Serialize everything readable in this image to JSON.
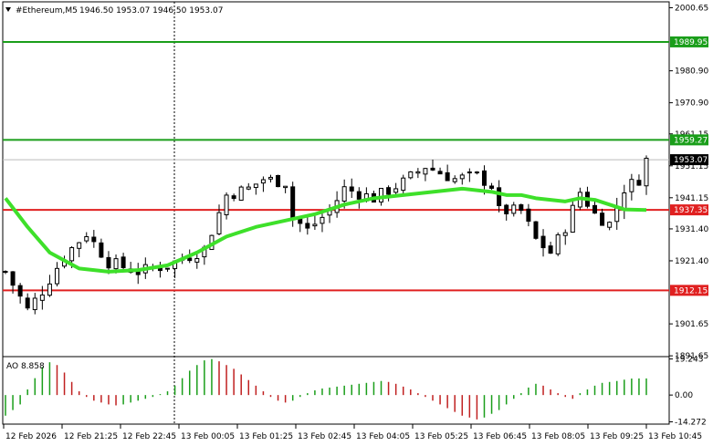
{
  "header": {
    "symbol": "#Ethereum,M5",
    "ohlc": "1946.50 1953.07 1946.50 1953.07"
  },
  "price_axis": {
    "ticks": [
      "2000.65",
      "1980.90",
      "1970.90",
      "1961.15",
      "1951.15",
      "1941.15",
      "1931.40",
      "1921.40",
      "1901.65",
      "1891.65"
    ],
    "tick_values": [
      2000.65,
      1980.9,
      1970.9,
      1961.15,
      1951.15,
      1941.15,
      1931.4,
      1921.4,
      1901.65,
      1891.65
    ],
    "range": [
      1891.4,
      2002.5
    ]
  },
  "levels": [
    {
      "label": "1989.95",
      "value": 1989.95,
      "color": "#1a9e1a"
    },
    {
      "label": "1959.27",
      "value": 1959.27,
      "color": "#1a9e1a"
    },
    {
      "label": "1937.35",
      "value": 1937.35,
      "color": "#e02020"
    },
    {
      "label": "1912.15",
      "value": 1912.15,
      "color": "#e02020"
    }
  ],
  "current_price": {
    "label": "1953.07",
    "value": 1953.07
  },
  "ao": {
    "label": "AO 8.858",
    "ticks": [
      "19.243",
      "0.00",
      "-14.272"
    ],
    "tick_values": [
      19.243,
      0,
      -14.272
    ],
    "range": [
      -15.5,
      20.5
    ],
    "up_color": "#1a9e1a",
    "down_color": "#c02020"
  },
  "time_axis": {
    "labels": [
      "12 Feb 2026",
      "12 Feb 21:25",
      "12 Feb 22:45",
      "13 Feb 00:05",
      "13 Feb 01:25",
      "13 Feb 02:45",
      "13 Feb 04:05",
      "13 Feb 05:25",
      "13 Feb 06:45",
      "13 Feb 08:05",
      "13 Feb 09:25",
      "13 Feb 10:45"
    ]
  },
  "chart_data": {
    "type": "candlestick",
    "timeframe": "M5",
    "bar_count": 88,
    "close_path": [
      [
        0,
        1918
      ],
      [
        3,
        1906
      ],
      [
        5,
        1912
      ],
      [
        8,
        1923
      ],
      [
        11,
        1930
      ],
      [
        14,
        1921
      ],
      [
        18,
        1918
      ],
      [
        22,
        1920
      ],
      [
        27,
        1925
      ],
      [
        30,
        1942
      ],
      [
        33,
        1944
      ],
      [
        35,
        1947
      ],
      [
        38,
        1946
      ],
      [
        39,
        1935
      ],
      [
        41,
        1931
      ],
      [
        44,
        1937
      ],
      [
        46,
        1944
      ],
      [
        50,
        1941
      ],
      [
        54,
        1946
      ],
      [
        57,
        1951
      ],
      [
        61,
        1947
      ],
      [
        64,
        1948
      ],
      [
        66,
        1945
      ],
      [
        67,
        1937
      ],
      [
        70,
        1937
      ],
      [
        72,
        1928
      ],
      [
        74,
        1924
      ],
      [
        76,
        1932
      ],
      [
        78,
        1943
      ],
      [
        80,
        1936
      ],
      [
        82,
        1933
      ],
      [
        84,
        1944
      ],
      [
        86,
        1947
      ],
      [
        87,
        1953
      ]
    ],
    "series": [
      {
        "name": "price",
        "type": "candlestick",
        "color": "#000000"
      },
      {
        "type": "line",
        "color": "#3ee02a",
        "points": [
          [
            0,
            1941
          ],
          [
            3,
            1932
          ],
          [
            6,
            1924
          ],
          [
            10,
            1919
          ],
          [
            14,
            1918
          ],
          [
            18,
            1918.5
          ],
          [
            22,
            1920
          ],
          [
            26,
            1924
          ],
          [
            30,
            1929
          ],
          [
            34,
            1932
          ],
          [
            38,
            1934
          ],
          [
            42,
            1936
          ],
          [
            46,
            1939
          ],
          [
            50,
            1941
          ],
          [
            54,
            1942
          ],
          [
            58,
            1943
          ],
          [
            62,
            1944
          ],
          [
            64,
            1943.5
          ],
          [
            66,
            1943
          ],
          [
            68,
            1942
          ],
          [
            70,
            1942
          ],
          [
            72,
            1941
          ],
          [
            74,
            1940.5
          ],
          [
            76,
            1940
          ],
          [
            78,
            1941
          ],
          [
            80,
            1940.5
          ],
          [
            82,
            1939
          ],
          [
            84,
            1937.5
          ],
          [
            87,
            1937.3
          ]
        ]
      }
    ],
    "ao_values": [
      -11,
      -8,
      -5,
      3,
      9,
      15,
      17.5,
      16,
      12,
      7,
      2,
      -1,
      -3,
      -4,
      -5,
      -5.5,
      -5,
      -4,
      -3,
      -2,
      -1,
      0.5,
      2,
      5,
      9,
      13,
      16,
      18.5,
      19.2,
      18,
      16,
      14,
      11,
      8,
      5,
      2,
      -1,
      -3,
      -4,
      -3,
      -1,
      1,
      2.5,
      3.5,
      4,
      4.5,
      5,
      5.5,
      6,
      6.5,
      7,
      7.5,
      7,
      6,
      4.5,
      3,
      1,
      -1,
      -3,
      -5,
      -7,
      -9,
      -11,
      -12,
      -13,
      -12,
      -10,
      -8,
      -5,
      -2,
      1,
      4,
      6,
      5,
      3,
      1,
      -1,
      -2,
      1,
      3,
      5,
      6.5,
      7,
      7.5,
      8.2,
      8.8,
      8.858,
      8.86
    ]
  }
}
